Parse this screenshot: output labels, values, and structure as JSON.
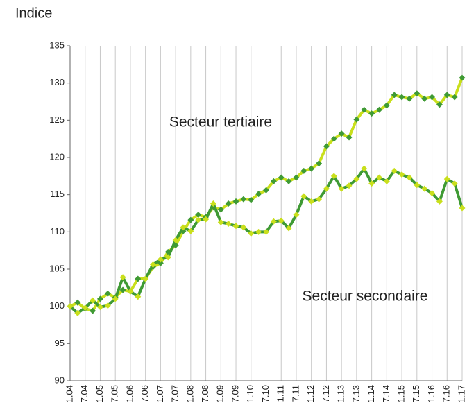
{
  "chart_data": {
    "type": "line",
    "title": "Indice",
    "categories": [
      "1.04",
      null,
      "7.04",
      null,
      "1.05",
      null,
      "7.05",
      null,
      "1.06",
      null,
      "7.06",
      null,
      "1.07",
      null,
      "7.07",
      null,
      "1.08",
      null,
      "7.08",
      null,
      "1.09",
      null,
      "7.09",
      null,
      "1.10",
      null,
      "7.10",
      null,
      "1.11",
      null,
      "7.11",
      null,
      "1.12",
      null,
      "7.12",
      null,
      "1.13",
      null,
      "7.13",
      null,
      "1.14",
      null,
      "7.14",
      null,
      "1.15",
      null,
      "7.15",
      null,
      "1.16",
      null,
      "7.16",
      null,
      "1.17"
    ],
    "series": [
      {
        "name": "Secteur tertiaire",
        "color": "#c9df1c",
        "marker_color": "#3f9a34",
        "values": [
          100.0,
          100.5,
          99.7,
          99.4,
          101.0,
          101.7,
          101.2,
          102.2,
          102.0,
          103.7,
          103.7,
          105.3,
          105.8,
          107.3,
          108.2,
          110.1,
          111.6,
          112.3,
          112.0,
          113.3,
          113.0,
          113.8,
          114.1,
          114.4,
          114.3,
          115.1,
          115.6,
          116.8,
          117.3,
          116.8,
          117.3,
          118.2,
          118.5,
          119.2,
          121.5,
          122.5,
          123.2,
          122.7,
          125.1,
          126.4,
          125.9,
          126.4,
          127.0,
          128.4,
          128.1,
          127.9,
          128.6,
          127.9,
          128.1,
          127.1,
          128.4,
          128.1,
          130.7
        ]
      },
      {
        "name": "Secteur secondaire",
        "color": "#3f9a34",
        "marker_color": "#c9df1c",
        "values": [
          100.0,
          99.1,
          99.8,
          100.8,
          99.9,
          100.1,
          101.0,
          103.9,
          102.0,
          101.3,
          103.7,
          105.6,
          106.3,
          106.6,
          108.9,
          110.6,
          110.1,
          111.6,
          111.7,
          113.8,
          111.3,
          111.1,
          110.8,
          110.6,
          109.8,
          110.0,
          110.0,
          111.4,
          111.5,
          110.5,
          112.3,
          114.8,
          114.1,
          114.4,
          115.8,
          117.5,
          115.8,
          116.2,
          117.1,
          118.5,
          116.5,
          117.3,
          116.8,
          118.2,
          117.7,
          117.3,
          116.3,
          115.8,
          115.2,
          114.1,
          117.1,
          116.5,
          113.2
        ]
      }
    ],
    "ylim": [
      90,
      135
    ],
    "yticks": [
      90,
      95,
      100,
      105,
      110,
      115,
      120,
      125,
      130,
      135
    ],
    "grid": "x"
  }
}
